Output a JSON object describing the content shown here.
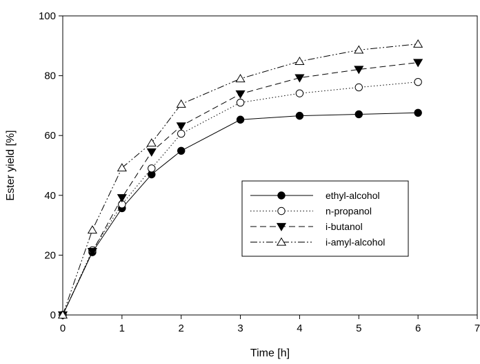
{
  "chart_data": {
    "type": "line",
    "xlabel": "Time [h]",
    "ylabel": "Ester yield [%]",
    "xlim": [
      0,
      7
    ],
    "ylim": [
      0,
      100
    ],
    "x_ticks": [
      "0",
      "1",
      "2",
      "3",
      "4",
      "5",
      "6",
      "7"
    ],
    "y_ticks": [
      "0",
      "20",
      "40",
      "60",
      "80",
      "100"
    ],
    "grid": false,
    "legend_position": "center-right",
    "series": [
      {
        "name": "ethyl-alcohol",
        "marker": "filled-circle",
        "line_style": "solid",
        "x": [
          0,
          0.5,
          1,
          1.5,
          2,
          3,
          4,
          5,
          6
        ],
        "values": [
          0,
          21,
          35.7,
          47,
          54.9,
          65.3,
          66.6,
          67.1,
          67.6
        ]
      },
      {
        "name": "n-propanol",
        "marker": "open-circle",
        "line_style": "dotted",
        "x": [
          0,
          0.5,
          1,
          1.5,
          2,
          3,
          4,
          5,
          6
        ],
        "values": [
          0,
          21.6,
          37,
          49,
          60.6,
          71,
          74.1,
          76.1,
          77.9
        ]
      },
      {
        "name": "i-butanol",
        "marker": "filled-triangle-down",
        "line_style": "dashed",
        "x": [
          0,
          0.5,
          1,
          1.5,
          2,
          3,
          4,
          5,
          6
        ],
        "values": [
          0,
          21.2,
          39.2,
          54.5,
          63.2,
          73.9,
          79.3,
          82.1,
          84.4
        ]
      },
      {
        "name": "i-amyl-alcohol",
        "marker": "open-triangle-up",
        "line_style": "dash-dot-dot",
        "x": [
          0,
          0.5,
          1,
          1.5,
          2,
          3,
          4,
          5,
          6
        ],
        "values": [
          0,
          28.4,
          49.2,
          57.5,
          70.5,
          79,
          84.8,
          88.6,
          90.6
        ]
      }
    ]
  }
}
